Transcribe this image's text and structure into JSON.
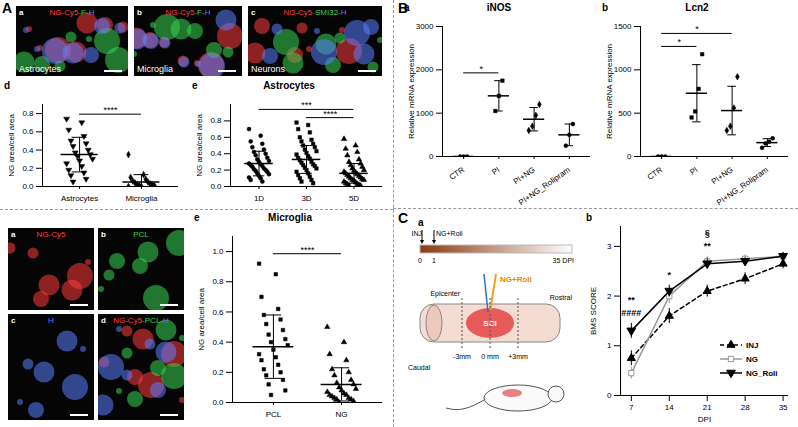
{
  "panel_letters": [
    "A",
    "B",
    "C"
  ],
  "images": [
    {
      "panel_label": "a",
      "stain": [
        {
          "text": "NG-Cy5-",
          "color": "#ff3b3b"
        },
        {
          "text": "F-",
          "color": "#39d353"
        },
        {
          "text": "H",
          "color": "#5a7dff"
        }
      ],
      "caption": "Astrocytes"
    },
    {
      "panel_label": "b",
      "stain": [
        {
          "text": "NG-Cy5-",
          "color": "#ff3b3b"
        },
        {
          "text": "F-",
          "color": "#39d353"
        },
        {
          "text": "H",
          "color": "#5a7dff"
        }
      ],
      "caption": "Microglia"
    },
    {
      "panel_label": "c",
      "stain": [
        {
          "text": "NG-Cy5-",
          "color": "#ff3b3b"
        },
        {
          "text": "SMI32-",
          "color": "#39d353"
        },
        {
          "text": "H",
          "color": "#5a7dff"
        }
      ],
      "caption": "Neurons"
    },
    {
      "panel_label": "a",
      "stain": [
        {
          "text": "NG-Cy5",
          "color": "#ff3b3b"
        }
      ]
    },
    {
      "panel_label": "b",
      "stain": [
        {
          "text": "PCL",
          "color": "#39d353"
        }
      ]
    },
    {
      "panel_label": "c",
      "stain": [
        {
          "text": "H",
          "color": "#5a7dff"
        }
      ]
    },
    {
      "panel_label": "d",
      "stain": [
        {
          "text": "NG-Cy5-",
          "color": "#ff3b3b"
        },
        {
          "text": "PCL-",
          "color": "#39d353"
        },
        {
          "text": "H",
          "color": "#5a7dff"
        }
      ]
    }
  ],
  "diagram": {
    "panel_label": "a",
    "events": [
      "INJ",
      "NG+Roli"
    ],
    "timeline": [
      "0",
      "1",
      "35 DPI"
    ],
    "treatment": "NG+Roli",
    "cord_labels": {
      "epicenter": "Epicenter",
      "minus": "-3mm",
      "zero": "0 mm",
      "plus": "+3mm",
      "rostral": "Rostral",
      "caudal": "Caudal",
      "lesion": "SCI"
    }
  },
  "chart_data": [
    {
      "type": "scatter",
      "panel_label": "d",
      "categories": [
        "Astrocytes",
        "Microglia"
      ],
      "y_label": "NG area/cell area",
      "ylim": [
        0,
        0.9
      ],
      "yticks": [
        {
          "value": 0,
          "label": "0.0"
        },
        0.2,
        0.4,
        0.6,
        0.8
      ],
      "groups": [
        {
          "marker": "triangle-down",
          "values": [
            0.74,
            0.7,
            0.62,
            0.55,
            0.5,
            0.47,
            0.44,
            0.4,
            0.37,
            0.35,
            0.33,
            0.3,
            0.28,
            0.25,
            0.22,
            0.18,
            0.15,
            0.12,
            0.08,
            0.05
          ],
          "mean": 0.35,
          "sd": 0.19
        },
        {
          "marker": "diamond",
          "values": [
            0.35,
            0.13,
            0.1,
            0.08,
            0.06,
            0.05,
            0.04,
            0.03,
            0.02,
            0.02,
            0.01,
            0.01,
            0.0,
            0.0
          ],
          "mean": 0.05,
          "sd": 0.08
        }
      ],
      "annotations": [
        {
          "text": "****",
          "from": "Astrocytes",
          "to": "Microglia"
        }
      ]
    },
    {
      "type": "scatter",
      "panel_label": "e",
      "title": "Astrocytes",
      "categories": [
        "1D",
        "3D",
        "5D"
      ],
      "y_label": "NG area/cell area",
      "ylim": [
        0,
        1
      ],
      "yticks": [
        {
          "value": 0,
          "label": "0.0"
        },
        0.2,
        0.4,
        0.6,
        0.8
      ],
      "groups": [
        {
          "marker": "circle",
          "values": [
            0.7,
            0.62,
            0.55,
            0.52,
            0.48,
            0.45,
            0.42,
            0.4,
            0.38,
            0.35,
            0.33,
            0.31,
            0.3,
            0.28,
            0.27,
            0.26,
            0.25,
            0.24,
            0.22,
            0.21,
            0.2,
            0.19,
            0.18,
            0.16,
            0.15,
            0.13,
            0.11,
            0.1,
            0.08,
            0.06
          ],
          "mean": 0.28,
          "sd": 0.15
        },
        {
          "marker": "square",
          "values": [
            0.78,
            0.75,
            0.7,
            0.66,
            0.6,
            0.57,
            0.55,
            0.52,
            0.5,
            0.48,
            0.45,
            0.43,
            0.41,
            0.39,
            0.37,
            0.35,
            0.34,
            0.32,
            0.3,
            0.29,
            0.27,
            0.26,
            0.25,
            0.23,
            0.22,
            0.2,
            0.18,
            0.16,
            0.14,
            0.12,
            0.1,
            0.08,
            0.06,
            0.04
          ],
          "mean": 0.33,
          "sd": 0.17
        },
        {
          "marker": "triangle",
          "values": [
            0.58,
            0.5,
            0.46,
            0.42,
            0.38,
            0.33,
            0.3,
            0.28,
            0.26,
            0.24,
            0.22,
            0.2,
            0.19,
            0.18,
            0.17,
            0.16,
            0.15,
            0.14,
            0.13,
            0.12,
            0.11,
            0.1,
            0.09,
            0.08,
            0.08,
            0.07,
            0.06,
            0.05,
            0.04,
            0.03,
            0.03,
            0.02,
            0.01,
            0.01
          ],
          "mean": 0.16,
          "sd": 0.12
        }
      ],
      "annotations": [
        {
          "text": "****",
          "from": "3D",
          "to": "5D"
        },
        {
          "text": "***",
          "from": "1D",
          "to": "5D"
        }
      ]
    },
    {
      "type": "scatter",
      "panel_label": "e",
      "title": "Microglia",
      "categories": [
        "PCL",
        "NG"
      ],
      "y_label": "NG area/cell area",
      "ylim": [
        0,
        1.1
      ],
      "yticks": [
        {
          "value": 0,
          "label": "0.0"
        },
        0.2,
        0.4,
        0.6,
        0.8,
        {
          "value": 1,
          "label": "1.0"
        }
      ],
      "groups": [
        {
          "marker": "square",
          "values": [
            0.92,
            0.85,
            0.7,
            0.62,
            0.58,
            0.55,
            0.52,
            0.48,
            0.45,
            0.42,
            0.4,
            0.38,
            0.35,
            0.32,
            0.3,
            0.28,
            0.25,
            0.22,
            0.2,
            0.18,
            0.15,
            0.12,
            0.08,
            0.05
          ],
          "mean": 0.37,
          "sd": 0.21
        },
        {
          "marker": "triangle",
          "values": [
            0.5,
            0.4,
            0.32,
            0.28,
            0.22,
            0.2,
            0.18,
            0.15,
            0.13,
            0.12,
            0.1,
            0.09,
            0.08,
            0.07,
            0.06,
            0.05,
            0.05,
            0.04,
            0.03,
            0.03,
            0.02,
            0.02,
            0.01,
            0.0
          ],
          "mean": 0.12,
          "sd": 0.11
        }
      ],
      "annotations": [
        {
          "text": "****",
          "from": "PCL",
          "to": "NG"
        }
      ]
    },
    {
      "type": "scatter",
      "panel_label": "a",
      "title": "iNOS",
      "categories": [
        "CTR",
        "PI",
        "PI+NG",
        "PI+NG_Rolipram"
      ],
      "y_label": "Relative mRNA expression",
      "ylim": [
        0,
        3000
      ],
      "yticks": [
        0,
        1000,
        2000,
        3000
      ],
      "groups": [
        {
          "marker": "circle",
          "values": [
            0,
            0,
            0
          ],
          "mean": 0,
          "sd": 0
        },
        {
          "marker": "square",
          "values": [
            1050,
            1400,
            1750
          ],
          "mean": 1400,
          "sd": 350
        },
        {
          "marker": "diamond",
          "values": [
            600,
            700,
            950,
            1200
          ],
          "mean": 860,
          "sd": 270
        },
        {
          "marker": "circle",
          "values": [
            250,
            500,
            750
          ],
          "mean": 500,
          "sd": 250
        }
      ],
      "annotations": [
        {
          "text": "*",
          "from": "CTR",
          "to": "PI"
        }
      ]
    },
    {
      "type": "scatter",
      "panel_label": "b",
      "title": "Lcn2",
      "categories": [
        "CTR",
        "PI",
        "PI+NG",
        "PI+NG_Rolipram"
      ],
      "y_label": "Relative mRNA expression",
      "ylim": [
        0,
        1500
      ],
      "yticks": [
        0,
        500,
        1000,
        1500
      ],
      "groups": [
        {
          "marker": "circle",
          "values": [
            0,
            0,
            0
          ],
          "mean": 0,
          "sd": 0
        },
        {
          "marker": "square",
          "values": [
            450,
            520,
            780,
            1180
          ],
          "mean": 730,
          "sd": 330
        },
        {
          "marker": "diamond",
          "values": [
            300,
            350,
            560,
            920
          ],
          "mean": 530,
          "sd": 280
        },
        {
          "marker": "circle",
          "values": [
            100,
            150,
            170,
            210
          ],
          "mean": 160,
          "sd": 45
        }
      ],
      "annotations": [
        {
          "text": "*",
          "from": "CTR",
          "to": "PI"
        },
        {
          "text": "*",
          "from": "CTR",
          "to": "PI+NG"
        }
      ]
    },
    {
      "type": "line",
      "panel_label": "b",
      "x": [
        7,
        14,
        21,
        28,
        35
      ],
      "xlim": [
        5,
        36
      ],
      "xticks": [
        7,
        14,
        21,
        28,
        35
      ],
      "x_label": "DPI",
      "ylim": [
        0,
        3.4
      ],
      "yticks": [
        0,
        1,
        2,
        3
      ],
      "y_label": "BMS SCORE",
      "legend": "bottom-right",
      "series": [
        {
          "name": "INJ",
          "color": "#000000",
          "line_style": "dashed",
          "marker": "triangle",
          "values": [
            0.75,
            1.6,
            2.1,
            2.35,
            2.65
          ],
          "errors": [
            0.15,
            0.15,
            0.12,
            0.12,
            0.1
          ]
        },
        {
          "name": "NG",
          "color": "#999999",
          "line_style": "solid",
          "marker": "square_open",
          "values": [
            0.45,
            2.0,
            2.7,
            2.75,
            2.8
          ],
          "errors": [
            0.12,
            0.15,
            0.1,
            0.08,
            0.08
          ]
        },
        {
          "name": "NG_Roli",
          "color": "#000000",
          "line_style": "solid",
          "marker": "triangle-down",
          "values": [
            1.3,
            2.1,
            2.65,
            2.7,
            2.8
          ],
          "errors": [
            0.15,
            0.12,
            0.1,
            0.08,
            0.08
          ]
        }
      ],
      "annotations": [
        {
          "x": 7,
          "text": "####"
        },
        {
          "x": 7,
          "text": "**"
        },
        {
          "x": 14,
          "text": "*"
        },
        {
          "x": 21,
          "text": "**"
        },
        {
          "x": 21,
          "text": "§"
        }
      ]
    }
  ]
}
